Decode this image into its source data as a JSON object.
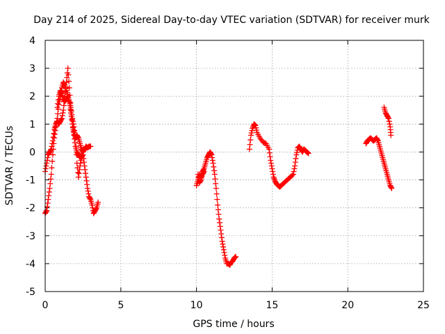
{
  "chart_data": {
    "type": "scatter",
    "title": "Day 214 of 2025, Sidereal Day-to-day VTEC variation (SDTVAR) for receiver murk",
    "xlabel": "GPS time / hours",
    "ylabel": "SDTVAR / TECUs",
    "xlim": [
      0,
      25
    ],
    "ylim": [
      -5,
      4
    ],
    "xticks": [
      0,
      5,
      10,
      15,
      20,
      25
    ],
    "yticks": [
      -5,
      -4,
      -3,
      -2,
      -1,
      0,
      1,
      2,
      3,
      4
    ],
    "grid": true,
    "marker": "plus",
    "color": "#ff0000",
    "series": [
      {
        "name": "SDTVAR",
        "segments": [
          {
            "x": [
              0.0,
              0.1,
              0.2,
              0.3,
              0.4,
              0.5,
              0.6,
              0.7,
              0.8,
              0.9,
              1.0,
              1.1,
              1.2,
              1.3,
              1.4,
              1.5,
              1.6,
              1.7,
              1.8,
              1.9,
              2.0,
              2.1,
              2.2,
              2.3,
              2.4,
              2.5,
              2.6,
              2.7,
              2.8,
              2.9,
              3.0
            ],
            "y": [
              -0.7,
              -0.4,
              -0.1,
              0.0,
              0.1,
              0.4,
              0.8,
              1.0,
              1.1,
              1.0,
              1.1,
              1.2,
              1.5,
              2.0,
              2.5,
              3.0,
              2.3,
              1.5,
              1.0,
              0.7,
              0.5,
              0.6,
              0.5,
              0.3,
              0.1,
              0.0,
              0.1,
              0.2,
              0.15,
              0.2,
              0.2
            ]
          },
          {
            "x": [
              0.0,
              0.1,
              0.2,
              0.3,
              0.4,
              0.5,
              0.6,
              0.7,
              0.8,
              0.9,
              1.0,
              1.1,
              1.2,
              1.3,
              1.4,
              1.5,
              1.6,
              1.7,
              1.8,
              1.9,
              2.0,
              2.1,
              2.2,
              2.3,
              2.4,
              2.5,
              2.6,
              2.7,
              2.8,
              2.9,
              3.0,
              3.1,
              3.2,
              3.3,
              3.4,
              3.5
            ],
            "y": [
              -2.2,
              -2.1,
              -1.7,
              -1.3,
              -0.8,
              -0.1,
              0.5,
              0.9,
              1.2,
              1.7,
              2.0,
              2.3,
              2.5,
              2.4,
              2.2,
              2.0,
              1.8,
              1.6,
              1.2,
              0.9,
              0.5,
              -0.4,
              -0.9,
              -0.5,
              -0.2,
              -0.1,
              -0.5,
              -0.9,
              -1.3,
              -1.6,
              -1.7,
              -1.9,
              -2.2,
              -2.1,
              -2.0,
              -1.8
            ]
          },
          {
            "x": [
              0.8,
              0.9,
              1.0,
              1.1,
              1.2,
              1.3,
              1.4,
              1.5,
              1.6,
              1.7,
              1.8,
              1.9,
              2.0,
              2.1,
              2.2,
              2.3,
              2.4
            ],
            "y": [
              1.6,
              2.0,
              2.2,
              2.1,
              1.9,
              1.8,
              1.9,
              2.0,
              1.8,
              1.4,
              1.0,
              0.6,
              0.2,
              0.0,
              -0.1,
              -0.2,
              -0.1
            ]
          },
          {
            "x": [
              10.0,
              10.1,
              10.2,
              10.3,
              10.4,
              10.5,
              10.6,
              10.7,
              10.8,
              10.9,
              11.0,
              11.1,
              11.2,
              11.3,
              11.4,
              11.5,
              11.6,
              11.7,
              11.8,
              11.9,
              12.0,
              12.1,
              12.2,
              12.3,
              12.4,
              12.5,
              12.6
            ],
            "y": [
              -1.2,
              -1.0,
              -0.8,
              -0.9,
              -0.7,
              -0.6,
              -0.4,
              -0.2,
              -0.1,
              0.0,
              -0.1,
              -0.4,
              -0.8,
              -1.3,
              -1.9,
              -2.4,
              -2.8,
              -3.2,
              -3.5,
              -3.8,
              -4.0,
              -4.0,
              -4.05,
              -3.95,
              -3.9,
              -3.8,
              -3.75
            ]
          },
          {
            "x": [
              10.1,
              10.2,
              10.3,
              10.4,
              10.5
            ],
            "y": [
              -0.8,
              -1.1,
              -1.0,
              -0.8,
              -0.7
            ]
          },
          {
            "x": [
              13.5,
              13.6,
              13.7,
              13.8,
              13.9,
              14.0,
              14.2,
              14.4,
              14.6,
              14.8,
              14.9,
              15.0,
              15.1,
              15.2,
              15.3,
              15.4,
              15.5,
              15.6,
              15.8,
              16.0,
              16.2,
              16.4,
              16.5,
              16.6,
              16.7,
              16.8,
              16.9,
              17.0,
              17.1,
              17.2,
              17.3,
              17.4
            ],
            "y": [
              0.1,
              0.6,
              0.85,
              1.0,
              0.95,
              0.7,
              0.5,
              0.35,
              0.3,
              0.1,
              -0.3,
              -0.6,
              -0.9,
              -1.05,
              -1.15,
              -1.2,
              -1.25,
              -1.2,
              -1.1,
              -1.0,
              -0.9,
              -0.8,
              -0.5,
              -0.1,
              0.15,
              0.2,
              0.1,
              0.0,
              0.1,
              0.05,
              0.0,
              -0.05
            ]
          },
          {
            "x": [
              21.2,
              21.3,
              21.4,
              21.5,
              21.6,
              21.7,
              21.8,
              21.9,
              22.0,
              22.1,
              22.2,
              22.3,
              22.4,
              22.5,
              22.6,
              22.7,
              22.8,
              22.9
            ],
            "y": [
              0.3,
              0.4,
              0.45,
              0.5,
              0.45,
              0.4,
              0.45,
              0.5,
              0.4,
              0.2,
              0.0,
              -0.2,
              -0.4,
              -0.6,
              -0.8,
              -1.0,
              -1.2,
              -1.3
            ]
          },
          {
            "x": [
              22.4,
              22.5,
              22.6,
              22.7,
              22.8,
              22.85
            ],
            "y": [
              1.6,
              1.4,
              1.3,
              1.2,
              0.9,
              0.6
            ]
          }
        ]
      }
    ]
  }
}
